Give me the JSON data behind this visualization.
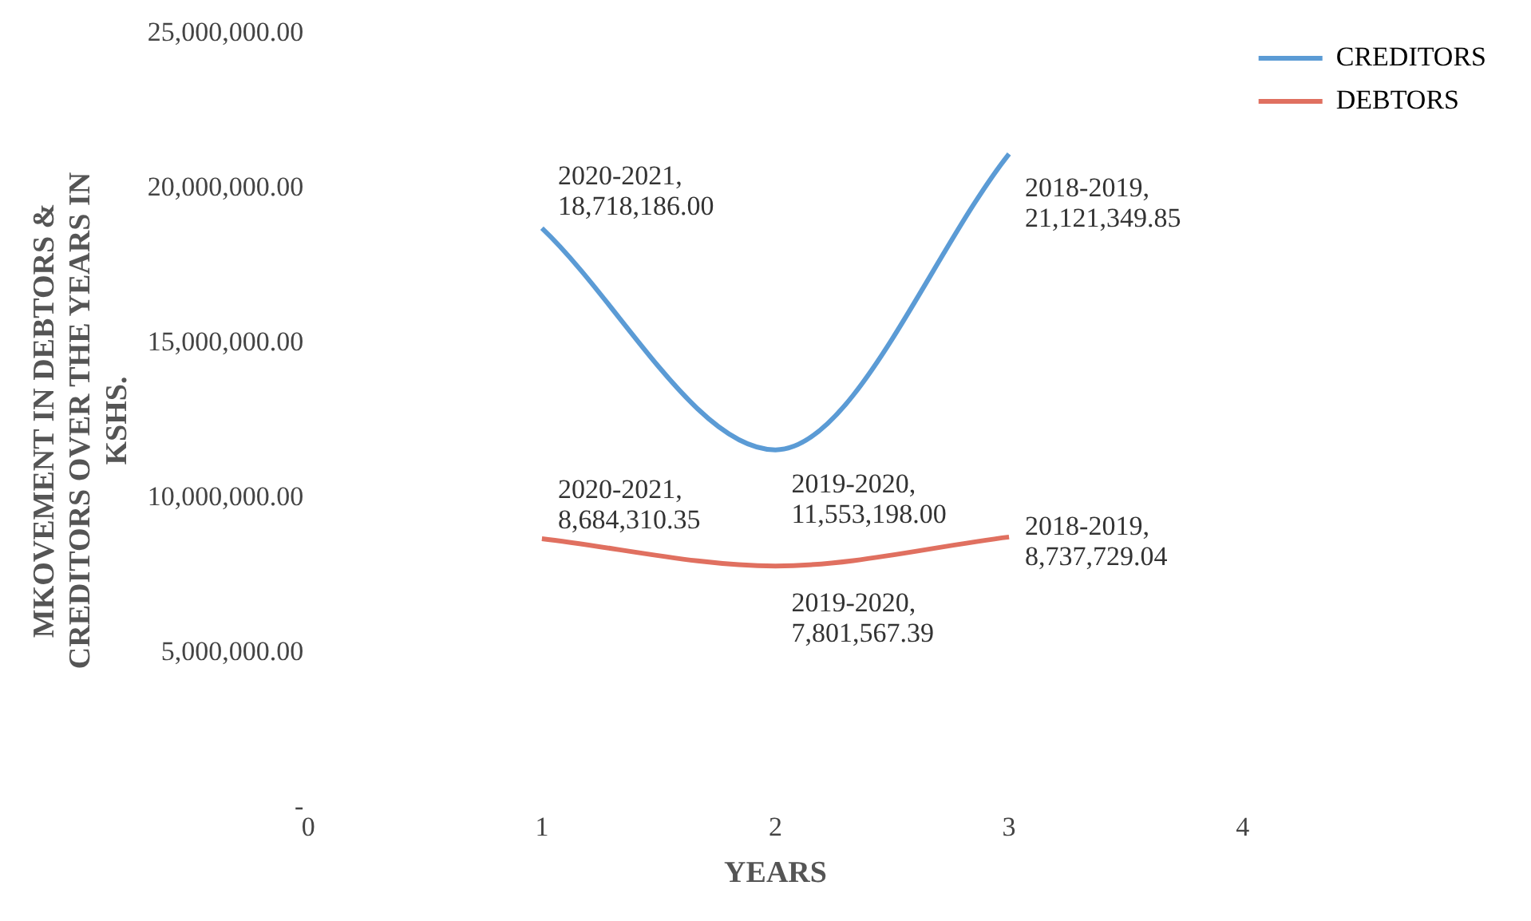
{
  "chart_data": {
    "type": "line",
    "xlabel": "YEARS",
    "ylabel": "MKOVEMENT IN DEBTORS & CREDITORS OVER THE YEARS IN KSHS.",
    "x": [
      1,
      2,
      3
    ],
    "series": [
      {
        "name": "CREDITORS",
        "color": "#5b9bd5",
        "values": [
          18718186.0,
          11553198.0,
          21121349.85
        ],
        "value_labels": [
          "2020-2021, 18,718,186.00",
          "2019-2020, 11,553,198.00",
          "2018-2019, 21,121,349.85"
        ]
      },
      {
        "name": "DEBTORS",
        "color": "#e07060",
        "values": [
          8684310.35,
          7801567.39,
          8737729.04
        ],
        "value_labels": [
          "2020-2021, 8,684,310.35",
          "2019-2020, 7,801,567.39",
          "2018-2019, 8,737,729.04"
        ]
      }
    ],
    "xlim": [
      0,
      4
    ],
    "xticks": [
      0,
      1,
      2,
      3,
      4
    ],
    "ylim": [
      0,
      25000000
    ],
    "yticks": [
      {
        "value": 0,
        "label": "-"
      },
      {
        "value": 5000000,
        "label": "5,000,000.00"
      },
      {
        "value": 10000000,
        "label": "10,000,000.00"
      },
      {
        "value": 15000000,
        "label": "15,000,000.00"
      },
      {
        "value": 20000000,
        "label": "20,000,000.00"
      },
      {
        "value": 25000000,
        "label": "25,000,000.00"
      }
    ],
    "grid": false,
    "legend": "right",
    "marker": "none",
    "line_style": "solid"
  }
}
